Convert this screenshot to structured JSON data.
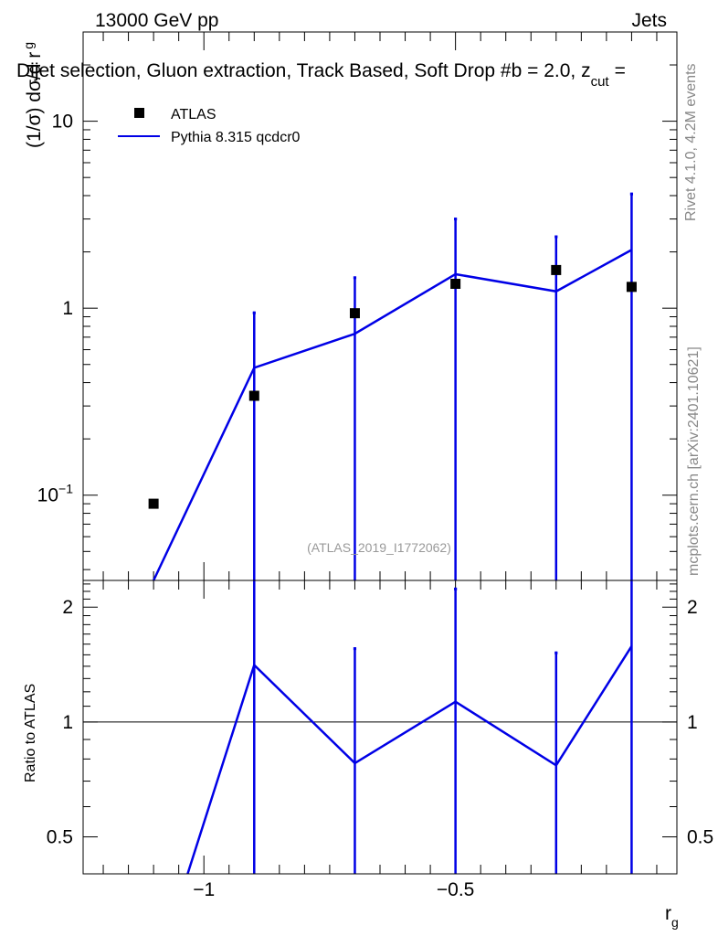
{
  "header": {
    "beam_label": "13000 GeV pp",
    "process_label": "Jets",
    "plot_title": "Dijet selection, Gluon extraction, Track Based, Soft Drop #b = 2.0, z",
    "plot_title_sub": "cut",
    "plot_title_tail": "="
  },
  "side_labels": {
    "rivet": "Rivet 4.1.0,  4.2M events",
    "mcplots": "mcplots.cern.ch [arXiv:2401.10621]"
  },
  "watermark": "(ATLAS_2019_I1772062)",
  "legend": {
    "data_label": "ATLAS",
    "mc_label": "Pythia 8.315 qcdcr0"
  },
  "colors": {
    "data": "#000000",
    "mc": "#0000e6",
    "watermark": "#999999",
    "side_text": "#888888"
  },
  "chart_data": [
    {
      "type": "scatter",
      "panel": "main",
      "title": "Dijet selection, Gluon extraction, Track Based, Soft Drop #b = 2.0, z_cut =",
      "xlabel": "r",
      "xlabel_sub": "g",
      "ylabel": "(1/σ) dσ/d r",
      "ylabel_sub": "g",
      "yscale": "log",
      "xlim": [
        -1.24,
        -0.06
      ],
      "ylim": [
        0.035,
        30
      ],
      "yticks": [
        {
          "value": 0.1,
          "label": "10",
          "sup": "−1"
        },
        {
          "value": 1,
          "label": "1",
          "sup": ""
        },
        {
          "value": 10,
          "label": "10",
          "sup": ""
        }
      ],
      "series": [
        {
          "name": "ATLAS",
          "kind": "points",
          "x": [
            -1.1,
            -0.9,
            -0.7,
            -0.5,
            -0.3,
            -0.15
          ],
          "y": [
            0.09,
            0.34,
            0.94,
            1.35,
            1.6,
            1.3
          ],
          "err_up": [
            null,
            0.96,
            1.48,
            3.05,
            2.45,
            4.15
          ],
          "err_down": [
            null,
            0.035,
            0.035,
            0.035,
            0.035,
            0.035
          ]
        },
        {
          "name": "Pythia 8.315 qcdcr0",
          "kind": "line",
          "x": [
            -1.1,
            -0.9,
            -0.7,
            -0.5,
            -0.3,
            -0.15
          ],
          "y": [
            0.035,
            0.48,
            0.73,
            1.52,
            1.23,
            2.05
          ]
        }
      ]
    },
    {
      "type": "line",
      "panel": "ratio",
      "xlabel": "r",
      "xlabel_sub": "g",
      "ylabel": "Ratio to ATLAS",
      "yscale": "log",
      "xlim": [
        -1.24,
        -0.06
      ],
      "ylim": [
        0.4,
        2.35
      ],
      "yticks": [
        {
          "value": 0.5,
          "label": "0.5"
        },
        {
          "value": 1,
          "label": "1"
        },
        {
          "value": 2,
          "label": "2"
        }
      ],
      "xticks": [
        {
          "value": -1,
          "label": "−1"
        },
        {
          "value": -0.5,
          "label": "−0.5"
        }
      ],
      "reference": 1,
      "series": [
        {
          "name": "Pythia 8.315 qcdcr0",
          "kind": "line",
          "x": [
            -1.1,
            -0.9,
            -0.7,
            -0.5,
            -0.3,
            -0.15
          ],
          "y": [
            0.21,
            1.41,
            0.78,
            1.13,
            0.77,
            1.58
          ]
        },
        {
          "name": "ATLAS uncertainty",
          "kind": "band",
          "x": [
            -1.1,
            -0.9,
            -0.7,
            -0.5,
            -0.3,
            -0.15
          ],
          "err_up": [
            null,
            2.8,
            1.57,
            2.25,
            1.53,
            3.2
          ],
          "err_down": [
            null,
            0.4,
            0.4,
            0.4,
            0.4,
            0.4
          ]
        }
      ]
    }
  ]
}
